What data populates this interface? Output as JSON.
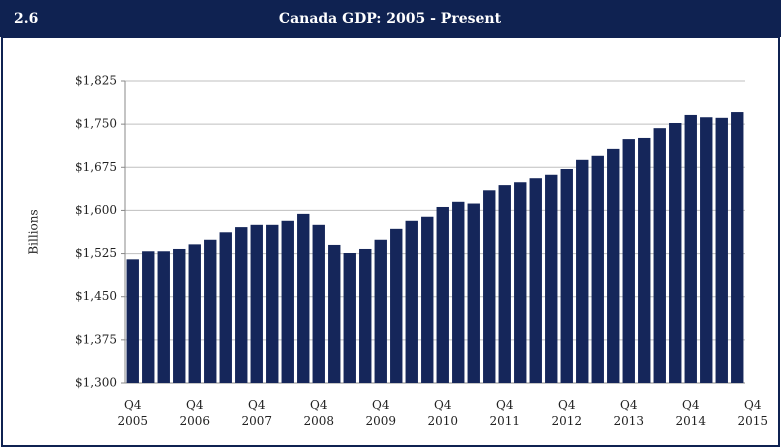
{
  "header": {
    "number": "2.6"
  },
  "chart_data": {
    "type": "bar",
    "title": "Canada GDP: 2005 - Present",
    "y_label": "Billions",
    "values": [
      1515,
      1529,
      1529,
      1533,
      1541,
      1549,
      1562,
      1571,
      1575,
      1575,
      1582,
      1594,
      1575,
      1540,
      1526,
      1533,
      1549,
      1568,
      1582,
      1589,
      1606,
      1615,
      1612,
      1635,
      1644,
      1649,
      1656,
      1662,
      1672,
      1688,
      1695,
      1707,
      1724,
      1726,
      1743,
      1752,
      1766,
      1762,
      1761,
      1771
    ],
    "x_tick_labels": [
      [
        "Q4",
        "2005"
      ],
      [
        "Q4",
        "2006"
      ],
      [
        "Q4",
        "2007"
      ],
      [
        "Q4",
        "2008"
      ],
      [
        "Q4",
        "2009"
      ],
      [
        "Q4",
        "2010"
      ],
      [
        "Q4",
        "2011"
      ],
      [
        "Q4",
        "2012"
      ],
      [
        "Q4",
        "2013"
      ],
      [
        "Q4",
        "2014"
      ],
      [
        "Q4",
        "2015"
      ]
    ],
    "color": "#15265a",
    "ylim": [
      1300,
      1825
    ],
    "yticks": [
      {
        "value": 1300,
        "label": "$1,300"
      },
      {
        "value": 1375,
        "label": "$1,375"
      },
      {
        "value": 1450,
        "label": "$1,450"
      },
      {
        "value": 1525,
        "label": "$1,525"
      },
      {
        "value": 1600,
        "label": "$1,600"
      },
      {
        "value": 1675,
        "label": "$1,675"
      },
      {
        "value": 1750,
        "label": "$1,750"
      },
      {
        "value": 1825,
        "label": "$1,825"
      }
    ],
    "grid": true
  }
}
